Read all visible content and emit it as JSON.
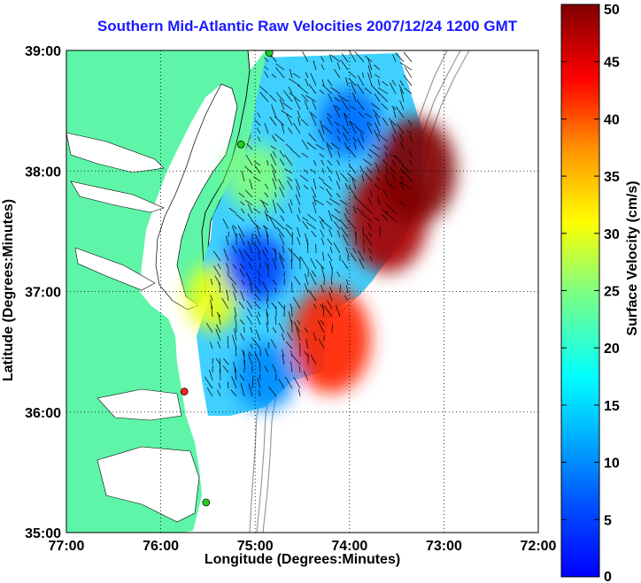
{
  "title": "Southern Mid-Atlantic Raw Velocities 2007/12/24 1200 GMT",
  "xlabel": "Longitude (Degrees:Minutes)",
  "ylabel": "Latitude (Degrees:Minutes)",
  "colorbar": {
    "label": "Surface Velocity (cm/s)",
    "units": "cm/s",
    "range": [
      0,
      50
    ],
    "ticks": [
      "0",
      "5",
      "10",
      "15",
      "20",
      "25",
      "30",
      "35",
      "40",
      "45",
      "50"
    ],
    "colormap": "jet"
  },
  "map": {
    "lon_range": [
      -77,
      -72
    ],
    "lat_range": [
      35,
      39
    ],
    "x_ticks": [
      "77:00",
      "76:00",
      "75:00",
      "74:00",
      "73:00",
      "72:00"
    ],
    "y_ticks": [
      "35:00",
      "36:00",
      "37:00",
      "38:00",
      "39:00"
    ],
    "grid": true,
    "land_color": "#5ef5a8",
    "water_color": "#ffffff",
    "bathymetry_color": "#9a9a9a"
  },
  "chart_data": {
    "type": "heatmap",
    "title": "Southern Mid-Atlantic Raw Velocities 2007/12/24 1200 GMT",
    "xlabel": "Longitude (Degrees:Minutes)",
    "ylabel": "Latitude (Degrees:Minutes)",
    "xlim": [
      -77,
      -72
    ],
    "ylim": [
      35,
      39
    ],
    "value_range_cm_s": [
      0,
      50
    ],
    "velocity_hotspots": [
      {
        "lon": -73.6,
        "lat": 37.6,
        "speed": 48
      },
      {
        "lon": -73.3,
        "lat": 38.0,
        "speed": 50
      },
      {
        "lon": -74.2,
        "lat": 36.6,
        "speed": 42
      },
      {
        "lon": -75.45,
        "lat": 36.95,
        "speed": 30
      },
      {
        "lon": -75.0,
        "lat": 37.2,
        "speed": 5
      },
      {
        "lon": -74.0,
        "lat": 38.4,
        "speed": 8
      },
      {
        "lon": -74.9,
        "lat": 36.3,
        "speed": 10
      },
      {
        "lon": -75.0,
        "lat": 37.95,
        "speed": 25
      }
    ],
    "stations": [
      {
        "lon": -74.85,
        "lat": 38.98,
        "status": "active",
        "color": "#22cc22"
      },
      {
        "lon": -75.15,
        "lat": 38.22,
        "status": "active",
        "color": "#22cc22"
      },
      {
        "lon": -75.75,
        "lat": 36.17,
        "status": "inactive",
        "color": "#ff2020"
      },
      {
        "lon": -75.52,
        "lat": 35.25,
        "status": "active",
        "color": "#22cc22"
      }
    ]
  }
}
